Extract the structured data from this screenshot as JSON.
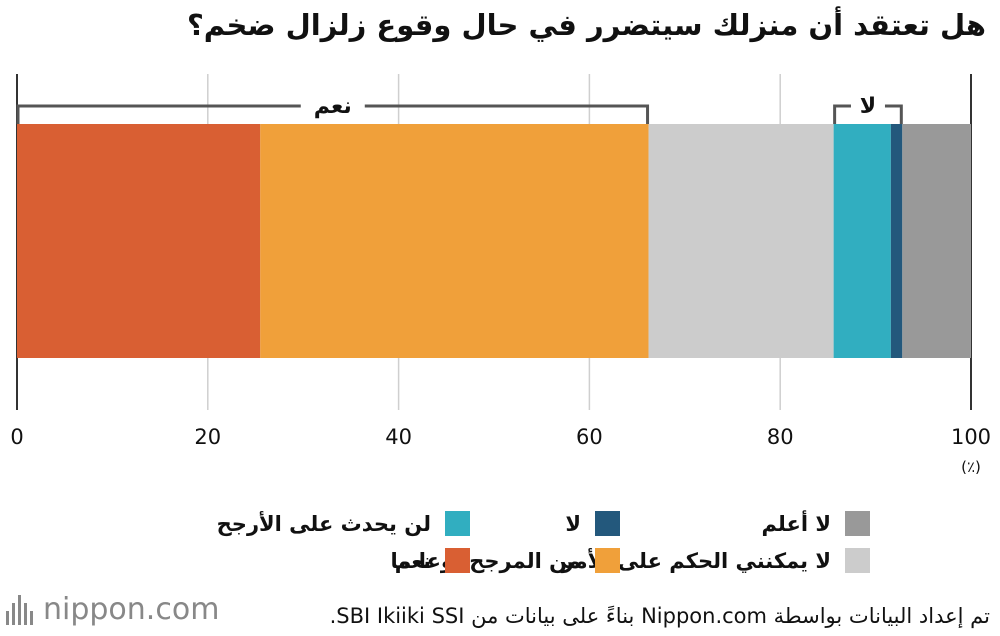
{
  "title": "هل تعتقد أن منزلك سيتضرر في حال وقوع زلزال ضخم؟",
  "chart_data": {
    "type": "bar",
    "orientation": "horizontal-stacked",
    "xlim": [
      0,
      100
    ],
    "x_ticks": [
      "0",
      "20",
      "40",
      "60",
      "80",
      "100"
    ],
    "unit_label": "(٪)",
    "grid": true,
    "series": [
      {
        "name": "نعم",
        "value": 25.5,
        "color": "#d95f33"
      },
      {
        "name": "من المرجح نوعا ما",
        "value": 40.7,
        "color": "#f0a03a"
      },
      {
        "name": "لا يمكنني الحكم على الأمر",
        "value": 19.4,
        "color": "#cccccc"
      },
      {
        "name": "لن يحدث على الأرجح",
        "value": 6.0,
        "color": "#31aec0"
      },
      {
        "name": "لا",
        "value": 1.2,
        "color": "#23587c"
      },
      {
        "name": "لا أعلم",
        "value": 7.2,
        "color": "#999999"
      }
    ],
    "brackets": [
      {
        "label": "نعم",
        "from": 0,
        "to": 66.2
      },
      {
        "label": "لا",
        "from": 85.6,
        "to": 92.8
      }
    ]
  },
  "legend_order": [
    5,
    4,
    3,
    2,
    1,
    0
  ],
  "footer": {
    "logo_text": "nippon.com",
    "source": "تم إعداد البيانات بواسطة Nippon.com بناءً على بيانات من SBI Ikiiki SSI."
  }
}
